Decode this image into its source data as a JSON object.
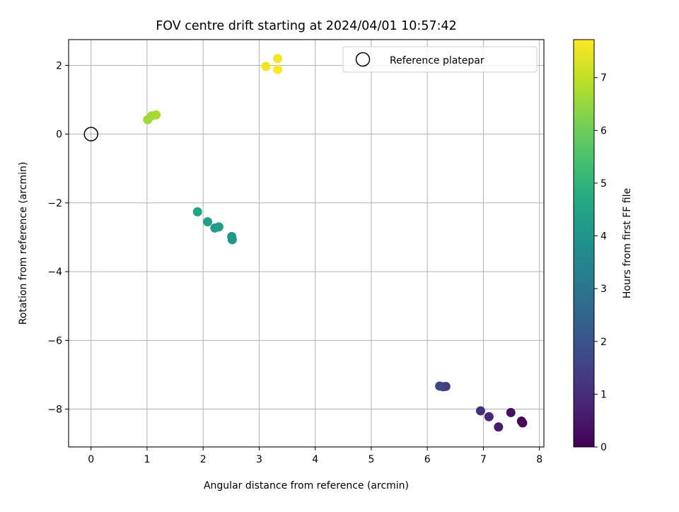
{
  "chart_data": {
    "type": "scatter",
    "title": "FOV centre drift starting at 2024/04/01 10:57:42",
    "xlabel": "Angular distance from reference (arcmin)",
    "ylabel": "Rotation from reference (arcmin)",
    "xlim": [
      -0.4,
      8.08
    ],
    "ylim": [
      -9.1,
      2.75
    ],
    "xticks": [
      0,
      1,
      2,
      3,
      4,
      5,
      6,
      7,
      8
    ],
    "xtick_labels": [
      "0",
      "1",
      "2",
      "3",
      "4",
      "5",
      "6",
      "7",
      "8"
    ],
    "yticks": [
      2,
      0,
      -2,
      -4,
      -6,
      -8
    ],
    "ytick_labels": [
      "2",
      "0",
      "−2",
      "−4",
      "−6",
      "−8"
    ],
    "grid": true,
    "colormap": "viridis",
    "colorbar": {
      "label": "Hours from first FF file",
      "range": [
        0,
        7.72
      ],
      "ticks": [
        0,
        1,
        2,
        3,
        4,
        5,
        6,
        7
      ],
      "tick_labels": [
        "0",
        "1",
        "2",
        "3",
        "4",
        "5",
        "6",
        "7"
      ]
    },
    "reference": {
      "x": 0,
      "y": 0,
      "label": "Reference platepar"
    },
    "legend": {
      "location": "upper right",
      "entries": [
        "Reference platepar"
      ]
    },
    "points": [
      {
        "x": 7.68,
        "y": -8.35,
        "hours": 0.05
      },
      {
        "x": 7.7,
        "y": -8.4,
        "hours": 0.1
      },
      {
        "x": 7.49,
        "y": -8.1,
        "hours": 0.35
      },
      {
        "x": 7.27,
        "y": -8.52,
        "hours": 0.6
      },
      {
        "x": 7.1,
        "y": -8.22,
        "hours": 0.85
      },
      {
        "x": 6.95,
        "y": -8.05,
        "hours": 1.05
      },
      {
        "x": 6.33,
        "y": -7.34,
        "hours": 1.35
      },
      {
        "x": 6.28,
        "y": -7.35,
        "hours": 1.45
      },
      {
        "x": 6.22,
        "y": -7.33,
        "hours": 1.55
      },
      {
        "x": 2.52,
        "y": -3.07,
        "hours": 4.0
      },
      {
        "x": 2.51,
        "y": -2.98,
        "hours": 4.1
      },
      {
        "x": 2.28,
        "y": -2.7,
        "hours": 4.2
      },
      {
        "x": 2.21,
        "y": -2.73,
        "hours": 4.25
      },
      {
        "x": 2.08,
        "y": -2.55,
        "hours": 4.35
      },
      {
        "x": 1.9,
        "y": -2.26,
        "hours": 4.55
      },
      {
        "x": 1.01,
        "y": 0.42,
        "hours": 6.6
      },
      {
        "x": 1.08,
        "y": 0.53,
        "hours": 6.65
      },
      {
        "x": 1.16,
        "y": 0.56,
        "hours": 6.7
      },
      {
        "x": 3.12,
        "y": 1.97,
        "hours": 7.55
      },
      {
        "x": 3.33,
        "y": 2.2,
        "hours": 7.62
      },
      {
        "x": 3.33,
        "y": 1.88,
        "hours": 7.7
      }
    ]
  }
}
